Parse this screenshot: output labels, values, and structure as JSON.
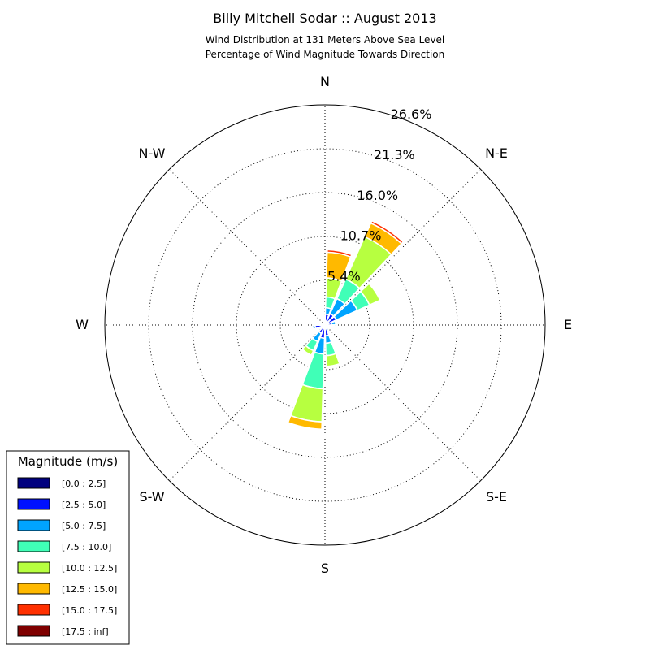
{
  "chart_data": {
    "type": "windrose",
    "title": "Billy Mitchell Sodar :: August 2013",
    "subtitle_lines": [
      "Wind Distribution at 131 Meters Above Sea Level",
      "Percentage of Wind Magnitude Towards Direction"
    ],
    "directions": [
      "N",
      "N-E",
      "E",
      "S-E",
      "S",
      "S-W",
      "W",
      "N-W"
    ],
    "radial_labels": [
      "5.4%",
      "10.7%",
      "16.0%",
      "21.3%",
      "26.6%"
    ],
    "radial_ticks": [
      5.4,
      10.7,
      16.0,
      21.3,
      26.6
    ],
    "rmax": 26.6,
    "grid": true,
    "legend": {
      "title": "Magnitude (m/s)",
      "placement": "lower-left",
      "bins": [
        {
          "label": "[0.0 : 2.5]",
          "color": "#00007f"
        },
        {
          "label": "[2.5 : 5.0]",
          "color": "#0010ff"
        },
        {
          "label": "[5.0 : 7.5]",
          "color": "#00a4ff"
        },
        {
          "label": "[7.5 : 10.0]",
          "color": "#40ffb7"
        },
        {
          "label": "[10.0 : 12.5]",
          "color": "#b7ff40"
        },
        {
          "label": "[12.5 : 15.0]",
          "color": "#ffb900"
        },
        {
          "label": "[15.0 : 17.5]",
          "color": "#ff3000"
        },
        {
          "label": "[17.5 : inf]",
          "color": "#7f0000"
        }
      ]
    },
    "sectors": [
      {
        "angle": 11.25,
        "values": [
          0.5,
          0.8,
          0.8,
          1.3,
          2.3,
          3.1,
          0.3,
          0
        ]
      },
      {
        "angle": 33.75,
        "values": [
          0.5,
          1.0,
          2.0,
          2.6,
          5.6,
          1.8,
          0.3,
          0
        ]
      },
      {
        "angle": 56.25,
        "values": [
          0.5,
          1.0,
          2.8,
          1.6,
          1.4,
          0,
          0,
          0
        ]
      },
      {
        "angle": 78.75,
        "values": [
          0.3,
          0.5,
          0.5,
          0.1,
          0,
          0,
          0,
          0
        ]
      },
      {
        "angle": 146.25,
        "values": [
          0.2,
          0.3,
          0.2,
          0,
          0,
          0,
          0,
          0
        ]
      },
      {
        "angle": 168.75,
        "values": [
          0.3,
          1.0,
          0.9,
          1.5,
          1.3,
          0,
          0,
          0
        ]
      },
      {
        "angle": 191.25,
        "values": [
          0.4,
          1.2,
          1.9,
          4.2,
          4.0,
          0.9,
          0,
          0
        ]
      },
      {
        "angle": 213.75,
        "values": [
          0.3,
          0.8,
          1.1,
          1.2,
          0.6,
          0,
          0,
          0
        ]
      },
      {
        "angle": 236.25,
        "values": [
          0.2,
          0.3,
          0,
          0,
          0,
          0,
          0,
          0
        ]
      },
      {
        "angle": 258.75,
        "values": [
          0.4,
          0.8,
          0.3,
          0,
          0,
          0,
          0,
          0
        ]
      },
      {
        "angle": 281.25,
        "values": [
          0.2,
          0.1,
          0,
          0,
          0,
          0,
          0,
          0
        ]
      }
    ]
  }
}
